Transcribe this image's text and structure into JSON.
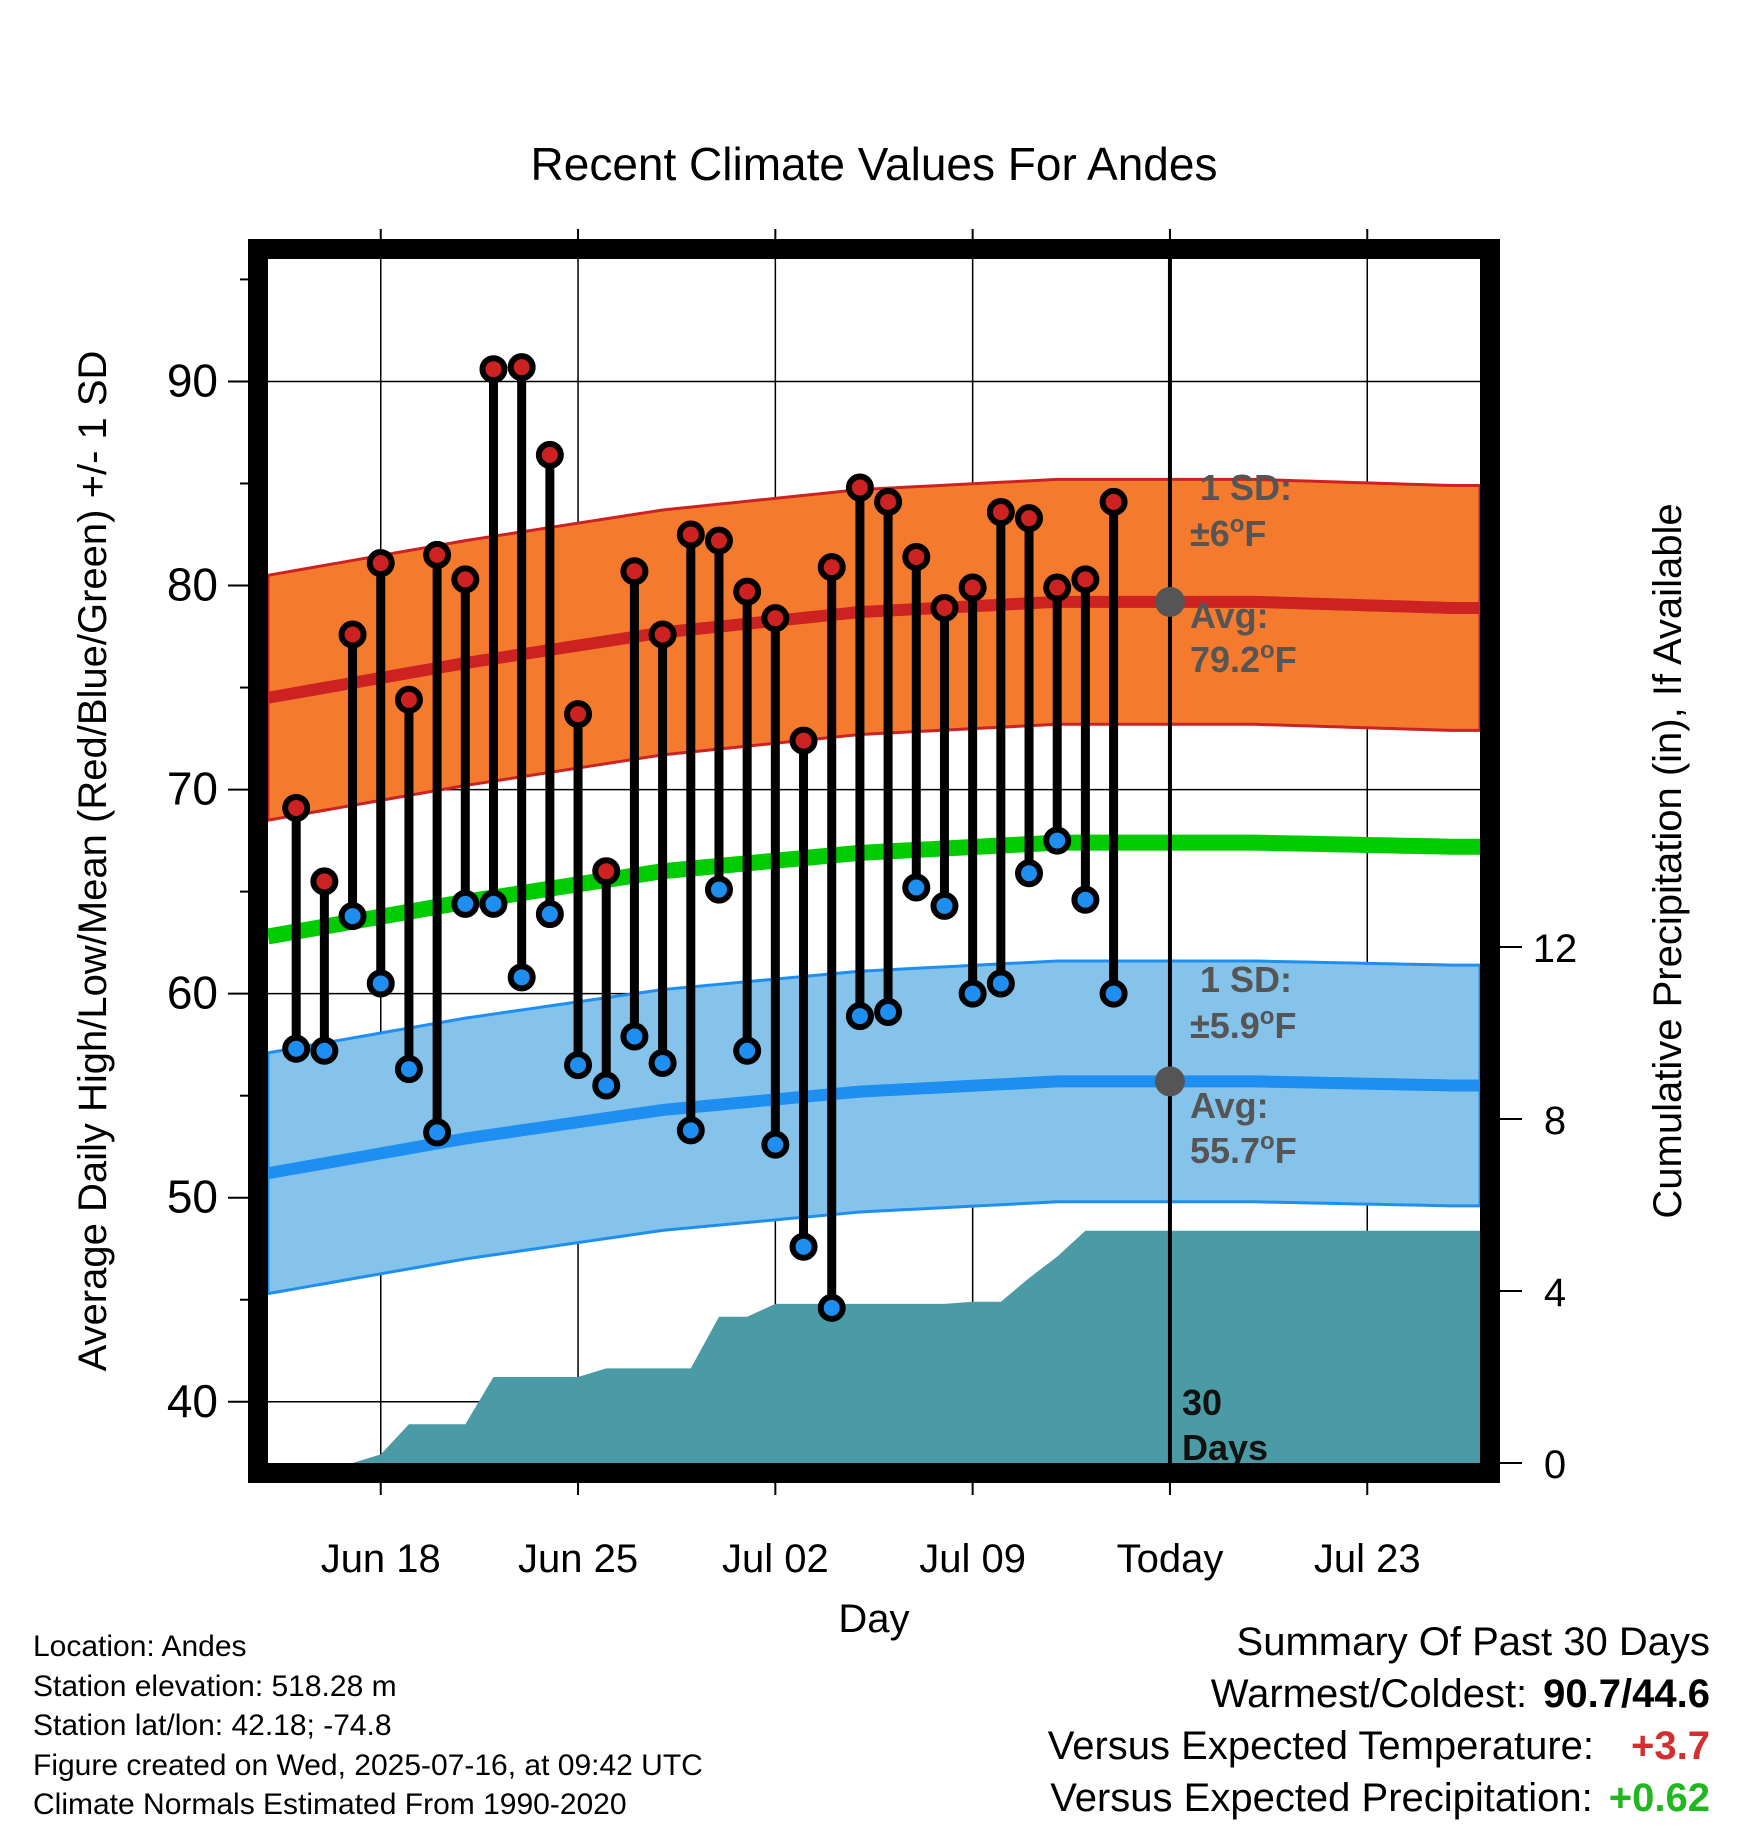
{
  "chart_data": {
    "type": "line",
    "title": "Recent Climate Values For Andes",
    "xlabel": "Day",
    "ylabel": "Average Daily High/Low/Mean (Red/Blue/Green) +/- 1 SD",
    "y2label": "Cumulative Precipitation (in), If Available",
    "xlim": [
      "2025-06-14",
      "2025-07-27"
    ],
    "ylim": [
      37,
      96
    ],
    "y2lim": [
      0,
      28
    ],
    "x_ticks": [
      {
        "date": "2025-06-18",
        "label": "Jun 18"
      },
      {
        "date": "2025-06-25",
        "label": "Jun 25"
      },
      {
        "date": "2025-07-02",
        "label": "Jul 02"
      },
      {
        "date": "2025-07-09",
        "label": "Jul 09"
      },
      {
        "date": "2025-07-16",
        "label": "Today"
      },
      {
        "date": "2025-07-23",
        "label": "Jul 23"
      }
    ],
    "y_ticks": [
      40,
      50,
      60,
      70,
      80,
      90
    ],
    "y2_ticks": [
      0,
      4,
      8,
      12
    ],
    "grid": true,
    "today": "2025-07-16",
    "series": [
      {
        "name": "High",
        "color": "#cc2222",
        "x": [
          "2025-06-15",
          "2025-06-16",
          "2025-06-17",
          "2025-06-18",
          "2025-06-19",
          "2025-06-20",
          "2025-06-21",
          "2025-06-22",
          "2025-06-23",
          "2025-06-24",
          "2025-06-25",
          "2025-06-26",
          "2025-06-27",
          "2025-06-28",
          "2025-06-29",
          "2025-06-30",
          "2025-07-01",
          "2025-07-02",
          "2025-07-03",
          "2025-07-04",
          "2025-07-05",
          "2025-07-06",
          "2025-07-07",
          "2025-07-08",
          "2025-07-09",
          "2025-07-10",
          "2025-07-11",
          "2025-07-12",
          "2025-07-13",
          "2025-07-14",
          "2025-07-15"
        ],
        "values": [
          69.1,
          65.5,
          77.6,
          81.1,
          74.4,
          81.5,
          80.3,
          90.6,
          90.7,
          86.4,
          73.7,
          66.0,
          80.7,
          77.6,
          82.5,
          82.2,
          79.7,
          78.4,
          72.4,
          80.9,
          84.8,
          84.1,
          81.4,
          78.9,
          79.9,
          83.6,
          83.3,
          79.9,
          80.3,
          84.1,
          null
        ]
      },
      {
        "name": "Low",
        "color": "#1e8ff0",
        "x": [
          "2025-06-15",
          "2025-06-16",
          "2025-06-17",
          "2025-06-18",
          "2025-06-19",
          "2025-06-20",
          "2025-06-21",
          "2025-06-22",
          "2025-06-23",
          "2025-06-24",
          "2025-06-25",
          "2025-06-26",
          "2025-06-27",
          "2025-06-28",
          "2025-06-29",
          "2025-06-30",
          "2025-07-01",
          "2025-07-02",
          "2025-07-03",
          "2025-07-04",
          "2025-07-05",
          "2025-07-06",
          "2025-07-07",
          "2025-07-08",
          "2025-07-09",
          "2025-07-10",
          "2025-07-11",
          "2025-07-12",
          "2025-07-13",
          "2025-07-14",
          "2025-07-15"
        ],
        "values": [
          57.3,
          57.2,
          63.8,
          60.5,
          56.3,
          53.2,
          64.4,
          64.4,
          60.8,
          63.9,
          56.5,
          55.5,
          57.9,
          56.6,
          53.3,
          65.1,
          57.2,
          52.6,
          47.6,
          44.6,
          58.9,
          59.1,
          65.2,
          64.3,
          60.0,
          60.5,
          65.9,
          67.5,
          64.6,
          60.0,
          null
        ]
      },
      {
        "name": "Avg High",
        "color": "#cc2222",
        "x": [
          "2025-06-14",
          "2025-06-21",
          "2025-06-28",
          "2025-07-05",
          "2025-07-12",
          "2025-07-19",
          "2025-07-26"
        ],
        "values": [
          74.5,
          76.2,
          77.7,
          78.7,
          79.2,
          79.2,
          78.9
        ],
        "sd": 6.0
      },
      {
        "name": "Avg Low",
        "color": "#1e8ff0",
        "x": [
          "2025-06-14",
          "2025-06-21",
          "2025-06-28",
          "2025-07-05",
          "2025-07-12",
          "2025-07-19",
          "2025-07-26"
        ],
        "values": [
          51.2,
          52.9,
          54.3,
          55.2,
          55.7,
          55.7,
          55.5
        ],
        "sd": 5.9
      },
      {
        "name": "Avg Mean",
        "color": "#00cc00",
        "x": [
          "2025-06-14",
          "2025-06-21",
          "2025-06-28",
          "2025-07-05",
          "2025-07-12",
          "2025-07-19",
          "2025-07-26"
        ],
        "values": [
          62.8,
          64.5,
          66.0,
          66.9,
          67.4,
          67.4,
          67.2
        ]
      },
      {
        "name": "Cumulative Precipitation",
        "color": "#4a9ba5",
        "type": "area",
        "axis": "y2",
        "x": [
          "2025-06-17",
          "2025-06-18",
          "2025-06-19",
          "2025-06-20",
          "2025-06-21",
          "2025-06-22",
          "2025-06-23",
          "2025-06-24",
          "2025-06-25",
          "2025-06-26",
          "2025-06-27",
          "2025-06-28",
          "2025-06-29",
          "2025-06-30",
          "2025-07-01",
          "2025-07-02",
          "2025-07-03",
          "2025-07-04",
          "2025-07-05",
          "2025-07-06",
          "2025-07-07",
          "2025-07-08",
          "2025-07-09",
          "2025-07-10",
          "2025-07-11",
          "2025-07-12",
          "2025-07-13",
          "2025-07-14",
          "2025-07-15",
          "2025-07-27"
        ],
        "values": [
          0.0,
          0.2,
          0.9,
          0.9,
          0.9,
          2.0,
          2.0,
          2.0,
          2.0,
          2.2,
          2.2,
          2.2,
          2.2,
          3.4,
          3.4,
          3.7,
          3.7,
          3.7,
          3.7,
          3.7,
          3.7,
          3.7,
          3.75,
          3.75,
          4.3,
          4.8,
          5.4,
          5.4,
          5.4,
          5.4
        ]
      }
    ],
    "annotations": {
      "high_sd_line1": "1 SD:",
      "high_sd_line2": "±6",
      "high_avg_line1": "Avg:",
      "high_avg_line2": "79.2",
      "low_sd_line1": "1 SD:",
      "low_sd_line2": "±5.9",
      "low_avg_line1": "Avg:",
      "low_avg_line2": "55.7",
      "degree": "o",
      "unit": "F",
      "days_line1": "30",
      "days_line2": "Days"
    },
    "high_avg_today": 79.2,
    "low_avg_today": 55.7
  },
  "info": {
    "location": "Location: Andes",
    "elevation": "Station elevation: 518.28 m",
    "latlon": "Station lat/lon: 42.18; -74.8",
    "created": "Figure created on Wed, 2025-07-16, at 09:42 UTC",
    "normals": "Climate Normals Estimated From 1990-2020"
  },
  "summary": {
    "title": "Summary Of Past 30 Days",
    "warm_cold_label": "Warmest/Coldest:",
    "warm_cold_value": "90.7/44.6",
    "temp_label": "Versus Expected Temperature:",
    "temp_value": "+3.7",
    "precip_label": "Versus Expected Precipitation:",
    "precip_value": "+0.62"
  },
  "colors": {
    "high": "#cc2222",
    "high_band": "#f47b2e",
    "low": "#1e8ff0",
    "low_band": "#85c3ea",
    "mean": "#00cc00",
    "precip": "#4a9ba5",
    "annotation": "#555555",
    "temp_value": "#d32f2f",
    "precip_value": "#1fb81f"
  }
}
